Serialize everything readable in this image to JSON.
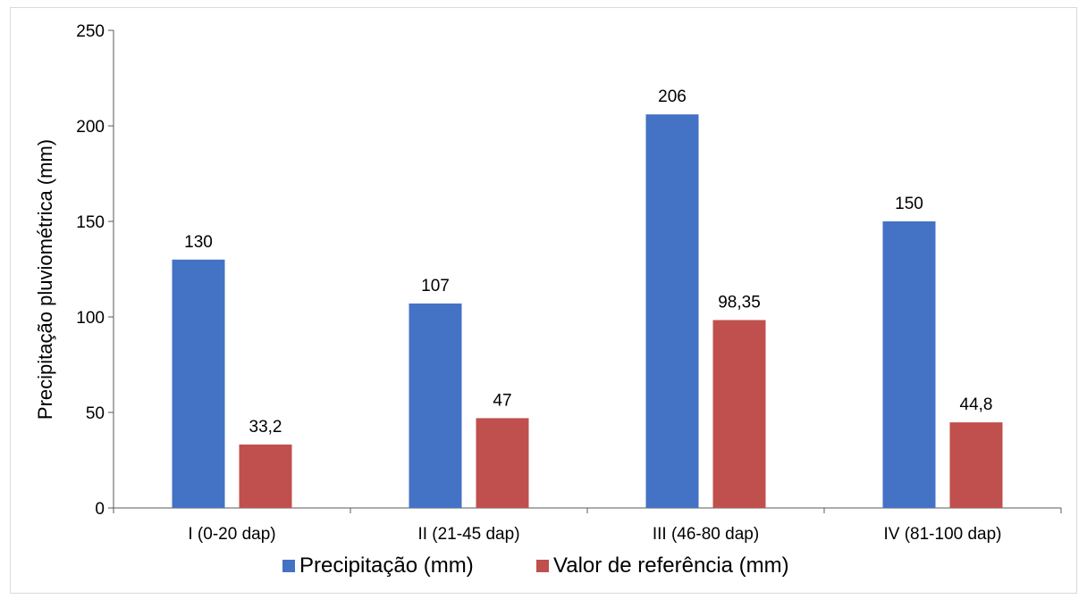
{
  "chart_data": {
    "type": "bar",
    "title": "",
    "xlabel": "",
    "ylabel": "Precipitação pluviométrica (mm)",
    "ylim": [
      0,
      250
    ],
    "yticks": [
      "0",
      "50",
      "100",
      "150",
      "200",
      "250"
    ],
    "categories": [
      "I (0-20 dap)",
      "II (21-45 dap)",
      "III (46-80 dap)",
      "IV (81-100 dap)"
    ],
    "series": [
      {
        "name": "Precipitação (mm)",
        "color": "#4472C4",
        "values": [
          130,
          107,
          206,
          150
        ],
        "labels": [
          "130",
          "107",
          "206",
          "150"
        ]
      },
      {
        "name": "Valor de referência (mm)",
        "color": "#C0504D",
        "values": [
          33.2,
          47,
          98.35,
          44.8
        ],
        "labels": [
          "33,2",
          "47",
          "98,35",
          "44,8"
        ]
      }
    ],
    "grid": false,
    "legend_position": "bottom"
  }
}
